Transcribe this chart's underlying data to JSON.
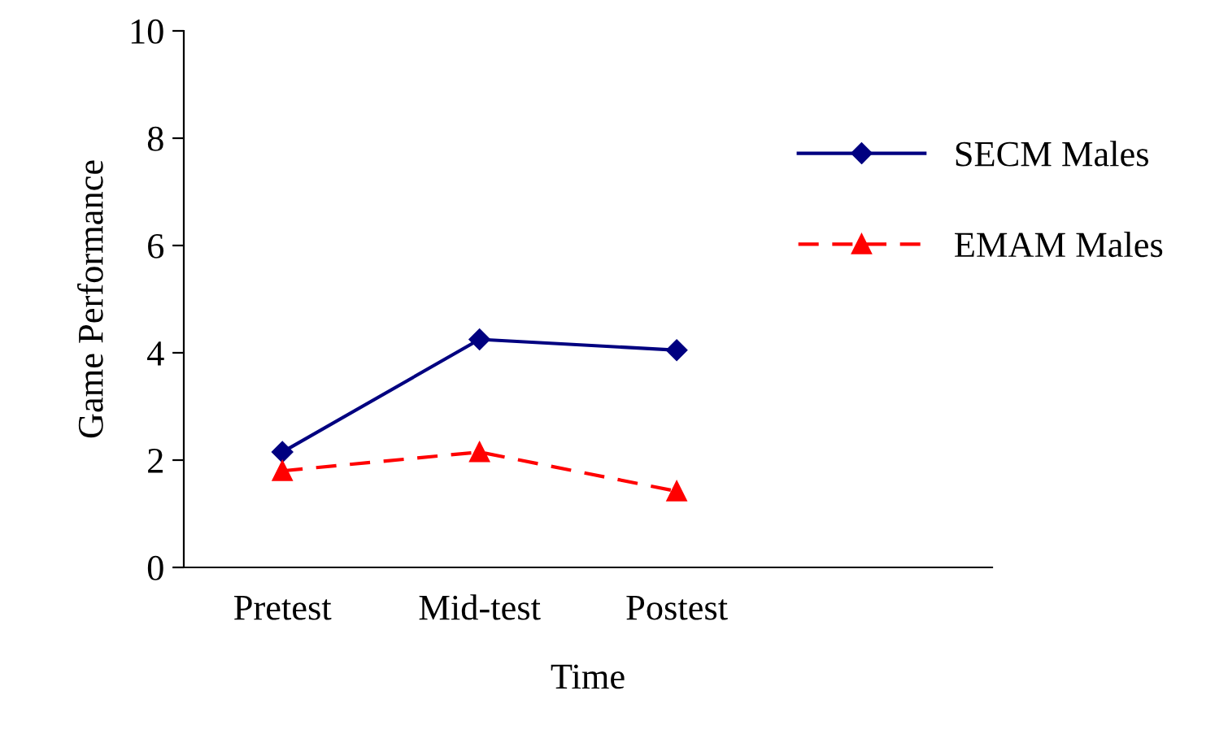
{
  "chart_data": {
    "type": "line",
    "xlabel": "Time",
    "ylabel": "Game Performance",
    "categories": [
      "Pretest",
      "Mid-test",
      "Postest"
    ],
    "series": [
      {
        "name": "SECM Males",
        "color": "#000080",
        "values": [
          2.15,
          4.25,
          4.05
        ],
        "marker": "diamond",
        "line_style": "solid"
      },
      {
        "name": "EMAM Males",
        "color": "#ff0000",
        "values": [
          1.8,
          2.15,
          1.42
        ],
        "marker": "triangle",
        "line_style": "dashed"
      }
    ],
    "ylim": [
      0,
      10
    ],
    "yticks": [
      0,
      2,
      4,
      6,
      8,
      10
    ],
    "grid": false,
    "legend": "right"
  }
}
